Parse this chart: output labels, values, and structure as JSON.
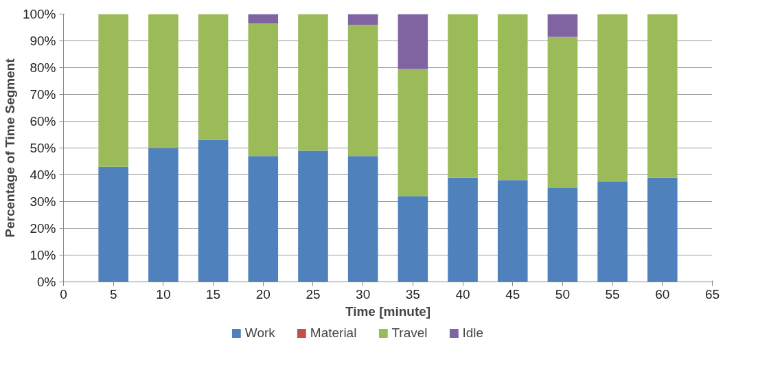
{
  "chart_data": {
    "type": "bar",
    "stacked": true,
    "xlabel": "Time [minute]",
    "ylabel": "Percentage of Time Segment",
    "x": [
      5,
      10,
      15,
      20,
      25,
      30,
      35,
      40,
      45,
      50,
      55,
      60
    ],
    "series": [
      {
        "name": "Work",
        "color": "#4f81bd",
        "values": [
          43,
          50,
          53,
          47,
          49,
          47,
          32,
          39,
          38,
          35,
          37.5,
          39
        ]
      },
      {
        "name": "Material",
        "color": "#c0504d",
        "values": [
          0,
          0,
          0,
          0,
          0,
          0,
          0,
          0,
          0,
          0,
          0,
          0
        ]
      },
      {
        "name": "Travel",
        "color": "#9bbb59",
        "values": [
          57,
          50,
          47,
          49.5,
          51,
          49,
          47.5,
          61,
          62,
          56.5,
          62.5,
          61
        ]
      },
      {
        "name": "Idle",
        "color": "#8064a2",
        "values": [
          0,
          0,
          0,
          3.5,
          0,
          4,
          20.5,
          0,
          0,
          8.5,
          0,
          0
        ]
      }
    ],
    "xlim": [
      0,
      65
    ],
    "xticks": [
      0,
      5,
      10,
      15,
      20,
      25,
      30,
      35,
      40,
      45,
      50,
      55,
      60,
      65
    ],
    "ylim": [
      0,
      100
    ],
    "yticks": [
      {
        "value": 0,
        "label": "0%"
      },
      {
        "value": 10,
        "label": "10%"
      },
      {
        "value": 20,
        "label": "20%"
      },
      {
        "value": 30,
        "label": "30%"
      },
      {
        "value": 40,
        "label": "40%"
      },
      {
        "value": 50,
        "label": "50%"
      },
      {
        "value": 60,
        "label": "60%"
      },
      {
        "value": 70,
        "label": "70%"
      },
      {
        "value": 80,
        "label": "80%"
      },
      {
        "value": 90,
        "label": "90%"
      },
      {
        "value": 100,
        "label": "100%"
      }
    ],
    "grid": "y",
    "legend": "bottom"
  }
}
